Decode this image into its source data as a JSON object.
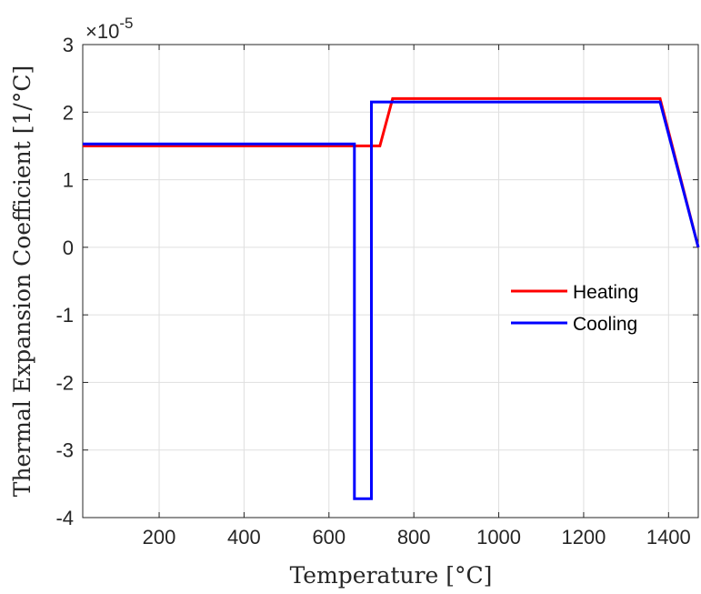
{
  "chart_data": {
    "type": "line",
    "title": "",
    "xlabel": "Temperature [°C]",
    "ylabel": "Thermal Expansion Coefficient [1/°C]",
    "xlim": [
      20,
      1470
    ],
    "ylim": [
      -4,
      3
    ],
    "x_ticks": [
      200,
      400,
      600,
      800,
      1000,
      1200,
      1400
    ],
    "x_tick_labels": [
      "200",
      "400",
      "600",
      "800",
      "1000",
      "1200",
      "1400"
    ],
    "y_ticks": [
      -4,
      -3,
      -2,
      -1,
      0,
      1,
      2,
      3
    ],
    "y_tick_labels": [
      "-4",
      "-3",
      "-2",
      "-1",
      "0",
      "1",
      "2",
      "3"
    ],
    "y_multiplier_base": "×10",
    "y_multiplier_exponent": "-5",
    "grid": true,
    "legend_position": "right",
    "series": [
      {
        "name": "Heating",
        "color": "#ff0000",
        "x": [
          20,
          720,
          750,
          1380,
          1470
        ],
        "y": [
          1.5,
          1.5,
          2.2,
          2.2,
          0
        ]
      },
      {
        "name": "Cooling",
        "color": "#0000ff",
        "x": [
          20,
          660,
          660,
          700,
          700,
          1380,
          1470
        ],
        "y": [
          1.53,
          1.53,
          -3.72,
          -3.72,
          2.15,
          2.15,
          0
        ]
      }
    ]
  }
}
